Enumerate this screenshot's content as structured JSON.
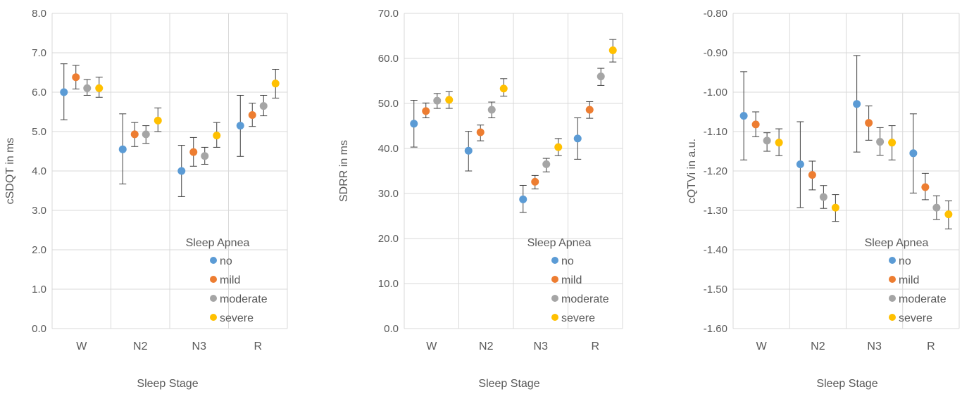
{
  "colors": {
    "no": "#5b9bd5",
    "mild": "#ed7d31",
    "moderate": "#a5a5a5",
    "severe": "#ffc000",
    "grid": "#d9d9d9",
    "text": "#595959",
    "error_bar": "#404040"
  },
  "chart_data": [
    {
      "type": "scatter",
      "title": "",
      "xlabel": "Sleep Stage",
      "ylabel": "cSDQT in ms",
      "categories": [
        "W",
        "N2",
        "N3",
        "R"
      ],
      "ylim": [
        0.0,
        8.0
      ],
      "yticks": [
        "0.0",
        "1.0",
        "2.0",
        "3.0",
        "4.0",
        "5.0",
        "6.0",
        "7.0",
        "8.0"
      ],
      "grid": true,
      "legend": {
        "title": "Sleep Apnea",
        "position": "bottom-right"
      },
      "series": [
        {
          "name": "no",
          "values": [
            6.0,
            4.55,
            4.0,
            5.15
          ],
          "err_low": [
            5.3,
            3.67,
            3.35,
            4.37
          ],
          "err_high": [
            6.72,
            5.45,
            4.65,
            5.92
          ]
        },
        {
          "name": "mild",
          "values": [
            6.38,
            4.93,
            4.48,
            5.42
          ],
          "err_low": [
            6.08,
            4.62,
            4.12,
            5.13
          ],
          "err_high": [
            6.68,
            5.23,
            4.85,
            5.72
          ]
        },
        {
          "name": "moderate",
          "values": [
            6.1,
            4.93,
            4.38,
            5.65
          ],
          "err_low": [
            5.92,
            4.7,
            4.17,
            5.4
          ],
          "err_high": [
            6.32,
            5.15,
            4.6,
            5.92
          ]
        },
        {
          "name": "severe",
          "values": [
            6.1,
            5.28,
            4.9,
            6.22
          ],
          "err_low": [
            5.87,
            5.0,
            4.6,
            5.85
          ],
          "err_high": [
            6.38,
            5.6,
            5.23,
            6.58
          ]
        }
      ]
    },
    {
      "type": "scatter",
      "title": "",
      "xlabel": "Sleep Stage",
      "ylabel": "SDRR in ms",
      "categories": [
        "W",
        "N2",
        "N3",
        "R"
      ],
      "ylim": [
        0.0,
        70.0
      ],
      "yticks": [
        "0.0",
        "10.0",
        "20.0",
        "30.0",
        "40.0",
        "50.0",
        "60.0",
        "70.0"
      ],
      "grid": true,
      "legend": {
        "title": "Sleep Apnea",
        "position": "bottom-right"
      },
      "series": [
        {
          "name": "no",
          "values": [
            45.5,
            39.5,
            28.7,
            42.2
          ],
          "err_low": [
            40.3,
            35.0,
            25.8,
            37.6
          ],
          "err_high": [
            50.7,
            43.8,
            31.8,
            46.8
          ]
        },
        {
          "name": "mild",
          "values": [
            48.3,
            43.6,
            32.6,
            48.6
          ],
          "err_low": [
            46.8,
            41.7,
            31.0,
            46.7
          ],
          "err_high": [
            50.1,
            45.2,
            34.0,
            50.4
          ]
        },
        {
          "name": "moderate",
          "values": [
            50.6,
            48.6,
            36.5,
            56.0
          ],
          "err_low": [
            48.9,
            46.8,
            34.8,
            54.0
          ],
          "err_high": [
            52.2,
            50.3,
            37.8,
            57.8
          ]
        },
        {
          "name": "severe",
          "values": [
            50.8,
            53.3,
            40.3,
            61.8
          ],
          "err_low": [
            48.9,
            51.6,
            38.4,
            59.2
          ],
          "err_high": [
            52.6,
            55.5,
            42.2,
            64.2
          ]
        }
      ]
    },
    {
      "type": "scatter",
      "title": "",
      "xlabel": "Sleep Stage",
      "ylabel": "cQTVi in a.u.",
      "categories": [
        "W",
        "N2",
        "N3",
        "R"
      ],
      "ylim": [
        -1.6,
        -0.8
      ],
      "yticks": [
        "-1.60",
        "-1.50",
        "-1.40",
        "-1.30",
        "-1.20",
        "-1.10",
        "-1.00",
        "-0.90",
        "-0.80"
      ],
      "grid": true,
      "legend": {
        "title": "Sleep Apnea",
        "position": "bottom-right"
      },
      "series": [
        {
          "name": "no",
          "values": [
            -1.06,
            -1.183,
            -1.03,
            -1.155
          ],
          "err_low": [
            -1.172,
            -1.293,
            -1.152,
            -1.256
          ],
          "err_high": [
            -0.948,
            -1.075,
            -0.907,
            -1.055
          ]
        },
        {
          "name": "mild",
          "values": [
            -1.082,
            -1.21,
            -1.078,
            -1.241
          ],
          "err_low": [
            -1.113,
            -1.248,
            -1.122,
            -1.273
          ],
          "err_high": [
            -1.05,
            -1.175,
            -1.035,
            -1.206
          ]
        },
        {
          "name": "moderate",
          "values": [
            -1.123,
            -1.266,
            -1.126,
            -1.293
          ],
          "err_low": [
            -1.15,
            -1.295,
            -1.16,
            -1.323
          ],
          "err_high": [
            -1.103,
            -1.237,
            -1.09,
            -1.263
          ]
        },
        {
          "name": "severe",
          "values": [
            -1.128,
            -1.293,
            -1.128,
            -1.31
          ],
          "err_low": [
            -1.161,
            -1.328,
            -1.172,
            -1.347
          ],
          "err_high": [
            -1.093,
            -1.26,
            -1.085,
            -1.276
          ]
        }
      ]
    }
  ]
}
